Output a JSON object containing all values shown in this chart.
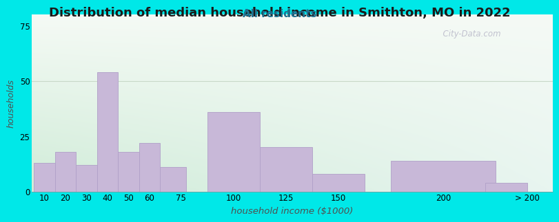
{
  "title": "Distribution of median household income in Smithton, MO in 2022",
  "subtitle": "All residents",
  "xlabel": "household income ($1000)",
  "ylabel": "households",
  "bar_labels": [
    "10",
    "20",
    "30",
    "40",
    "50",
    "60",
    "75",
    "100",
    "125",
    "150",
    "200",
    "> 200"
  ],
  "bar_lefts": [
    5,
    15,
    25,
    35,
    45,
    55,
    65,
    87.5,
    112.5,
    137.5,
    175,
    220
  ],
  "bar_widths": [
    10,
    10,
    10,
    10,
    10,
    10,
    12.5,
    25,
    25,
    25,
    50,
    20
  ],
  "bar_heights": [
    13,
    18,
    12,
    54,
    18,
    22,
    11,
    36,
    20,
    8,
    14,
    4
  ],
  "bar_xticks": [
    10,
    20,
    30,
    40,
    50,
    60,
    75,
    100,
    125,
    150,
    200,
    240
  ],
  "bar_color": "#c8b8d8",
  "bar_edge_color": "#b0a0c8",
  "ylim": [
    0,
    80
  ],
  "yticks": [
    0,
    25,
    50,
    75
  ],
  "xlim_left": 4,
  "xlim_right": 252,
  "bg_outer": "#00e8e8",
  "bg_plot_left": "#d0ecd8",
  "bg_plot_right": "#e8f5f0",
  "bg_plot_top": "#f5faf5",
  "title_fontsize": 13,
  "subtitle_fontsize": 11,
  "subtitle_color": "#207090",
  "watermark": "  City-Data.com",
  "tick_fontsize": 8.5,
  "ylabel_color": "#505050",
  "xlabel_color": "#505050",
  "grid_color": "#c8d8c8"
}
